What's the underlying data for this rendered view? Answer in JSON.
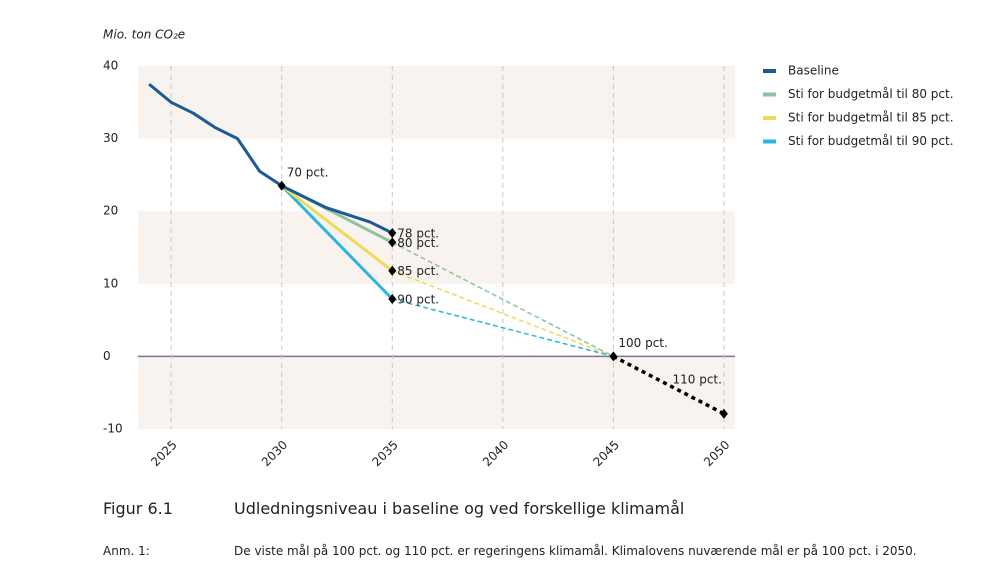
{
  "chart_data": {
    "type": "line",
    "ylabel": "Mio. ton CO₂e",
    "xlim": [
      2023.5,
      2050.5
    ],
    "xticks": [
      2025,
      2030,
      2035,
      2040,
      2045,
      2050
    ],
    "ylim": [
      -10,
      40
    ],
    "yticks": [
      -10,
      0,
      10,
      20,
      30,
      40
    ],
    "series": [
      {
        "name": "Baseline",
        "color": "#1a5a96",
        "x": [
          2024,
          2025,
          2026,
          2027,
          2028,
          2029,
          2030,
          2031,
          2032,
          2033,
          2034,
          2035
        ],
        "values": [
          37.5,
          35,
          33.5,
          31.5,
          30,
          25.5,
          23.5,
          22,
          20.5,
          19.5,
          18.5,
          17
        ]
      },
      {
        "name": "Sti for budgetmål til 80 pct.",
        "color": "#8fc39e",
        "x": [
          2030,
          2035
        ],
        "values": [
          23.5,
          15.7
        ]
      },
      {
        "name": "Sti for budgetmål til 85 pct.",
        "color": "#f0d95a",
        "x": [
          2030,
          2035
        ],
        "values": [
          23.5,
          11.8
        ]
      },
      {
        "name": "Sti for budgetmål til 90 pct.",
        "color": "#2bb5e0",
        "x": [
          2030,
          2035
        ],
        "values": [
          23.5,
          7.9
        ]
      }
    ],
    "projections": [
      {
        "color": "#8fc39e",
        "x": [
          2035,
          2045
        ],
        "values": [
          15.7,
          0
        ]
      },
      {
        "color": "#f0d95a",
        "x": [
          2035,
          2045
        ],
        "values": [
          11.8,
          0
        ]
      },
      {
        "color": "#2bb5e0",
        "x": [
          2035,
          2045
        ],
        "values": [
          7.9,
          0
        ]
      },
      {
        "color": "#000000",
        "x": [
          2045,
          2050
        ],
        "values": [
          0,
          -7.9
        ]
      }
    ],
    "annotations": [
      {
        "text": "70 pct.",
        "x": 2030,
        "y": 23.5
      },
      {
        "text": "78 pct.",
        "x": 2035,
        "y": 17
      },
      {
        "text": "80 pct.",
        "x": 2035,
        "y": 15.7
      },
      {
        "text": "85 pct.",
        "x": 2035,
        "y": 11.8
      },
      {
        "text": "90 pct.",
        "x": 2035,
        "y": 7.9
      },
      {
        "text": "100 pct.",
        "x": 2045,
        "y": 0
      },
      {
        "text": "110 pct.",
        "x": 2050,
        "y": -7.9
      }
    ]
  },
  "figure": {
    "number": "Figur 6.1",
    "caption": "Udledningsniveau i baseline og ved forskellige klimamål",
    "note_label": "Anm. 1:",
    "note": "De viste mål på 100 pct. og 110 pct. er regeringens klimamål. Klimalovens nuværende mål er på 100 pct. i 2050."
  }
}
